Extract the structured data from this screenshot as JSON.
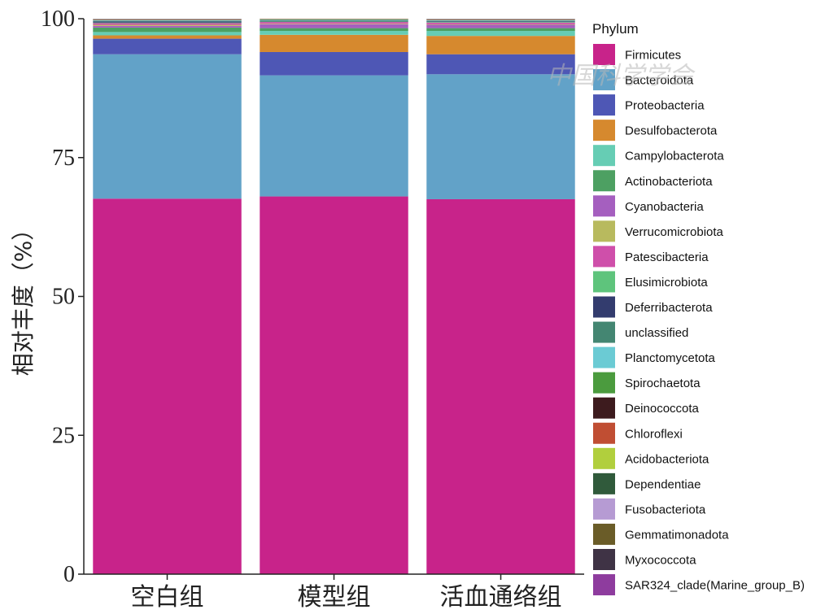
{
  "chart_data": {
    "type": "bar",
    "stacked": true,
    "title": "",
    "xlabel": "",
    "ylabel": "相对丰度（%）",
    "ylim": [
      0,
      100
    ],
    "yticks": [
      "0",
      "25",
      "50",
      "75",
      "100"
    ],
    "grid": false,
    "legend_title": "Phylum",
    "legend_position": "right",
    "categories": [
      "空白组",
      "模型组",
      "活血通络组"
    ],
    "series": [
      {
        "name": "Firmicutes",
        "color": "#C8238A",
        "values": [
          67.6,
          68.0,
          67.5
        ]
      },
      {
        "name": "Bacteroidota",
        "color": "#62A2C8",
        "values": [
          26.0,
          21.8,
          22.5
        ]
      },
      {
        "name": "Proteobacteria",
        "color": "#4E57B5",
        "values": [
          2.8,
          4.2,
          3.6
        ]
      },
      {
        "name": "Desulfobacterota",
        "color": "#D6892E",
        "values": [
          0.6,
          3.1,
          3.3
        ]
      },
      {
        "name": "Campylobacterota",
        "color": "#66CDB4",
        "values": [
          0.6,
          0.7,
          0.9
        ]
      },
      {
        "name": "Actinobacteriota",
        "color": "#4DA062",
        "values": [
          0.8,
          0.5,
          0.5
        ]
      },
      {
        "name": "Cyanobacteria",
        "color": "#A55FBF",
        "values": [
          0.3,
          0.7,
          0.6
        ]
      },
      {
        "name": "Verrucomicrobiota",
        "color": "#B8BA5E",
        "values": [
          0.2,
          0.1,
          0.1
        ]
      },
      {
        "name": "Patescibacteria",
        "color": "#CF4FAA",
        "values": [
          0.3,
          0.3,
          0.3
        ]
      },
      {
        "name": "Elusimicrobiota",
        "color": "#5EC47C",
        "values": [
          0.1,
          0.1,
          0.1
        ]
      },
      {
        "name": "Deferribacterota",
        "color": "#333C6E",
        "values": [
          0.2,
          0.1,
          0.1
        ]
      },
      {
        "name": "unclassified",
        "color": "#448672",
        "values": [
          0.1,
          0.1,
          0.1
        ]
      },
      {
        "name": "Planctomycetota",
        "color": "#6BCBD4",
        "values": [
          0.1,
          0.1,
          0.1
        ]
      },
      {
        "name": "Spirochaetota",
        "color": "#4B9B3E",
        "values": [
          0.05,
          0.05,
          0.05
        ]
      },
      {
        "name": "Deinococcota",
        "color": "#3D1B1E",
        "values": [
          0.05,
          0.05,
          0.05
        ]
      },
      {
        "name": "Chloroflexi",
        "color": "#C04E33",
        "values": [
          0.05,
          0.05,
          0.05
        ]
      },
      {
        "name": "Acidobacteriota",
        "color": "#B1CF3D",
        "values": [
          0.03,
          0.03,
          0.03
        ]
      },
      {
        "name": "Dependentiae",
        "color": "#305A3B",
        "values": [
          0.03,
          0.03,
          0.03
        ]
      },
      {
        "name": "Fusobacteriota",
        "color": "#B69BD3",
        "values": [
          0.03,
          0.03,
          0.03
        ]
      },
      {
        "name": "Gemmatimonadota",
        "color": "#6A5C28",
        "values": [
          0.02,
          0.02,
          0.02
        ]
      },
      {
        "name": "Myxococcota",
        "color": "#3F3345",
        "values": [
          0.02,
          0.02,
          0.02
        ]
      },
      {
        "name": "SAR324_clade(Marine_group_B)",
        "color": "#8E3C9E",
        "values": [
          0.02,
          0.02,
          0.02
        ]
      }
    ]
  },
  "watermark_text": "中国科学学会"
}
